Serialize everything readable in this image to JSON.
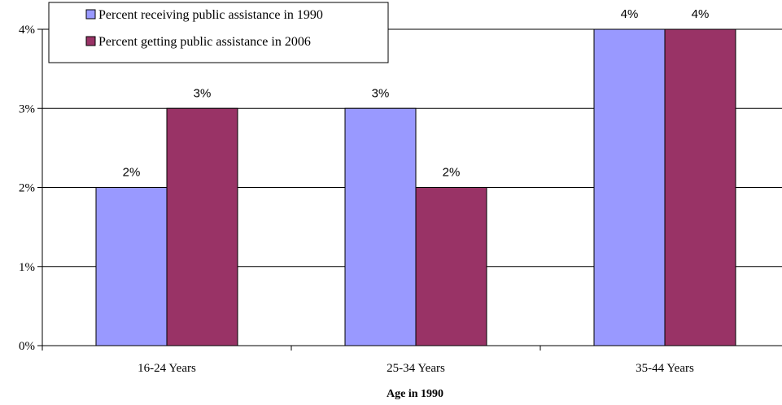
{
  "chart_data": {
    "type": "bar",
    "categories": [
      "16-24 Years",
      "25-34 Years",
      "35-44 Years"
    ],
    "series": [
      {
        "name": "Percent receiving public assistance in 1990",
        "values": [
          2,
          3,
          4
        ],
        "labels": [
          "2%",
          "3%",
          "4%"
        ],
        "color": "#9999ff"
      },
      {
        "name": "Percent getting public assistance in 2006",
        "values": [
          3,
          2,
          4
        ],
        "labels": [
          "3%",
          "2%",
          "4%"
        ],
        "color": "#993366"
      }
    ],
    "xlabel": "Age in 1990",
    "ylabel": "",
    "ylim": [
      0,
      4
    ],
    "yticks": [
      0,
      1,
      2,
      3,
      4
    ],
    "ytick_labels": [
      "0%",
      "1%",
      "2%",
      "3%",
      "4%"
    ],
    "grid": true,
    "legend_position": "top-left"
  }
}
